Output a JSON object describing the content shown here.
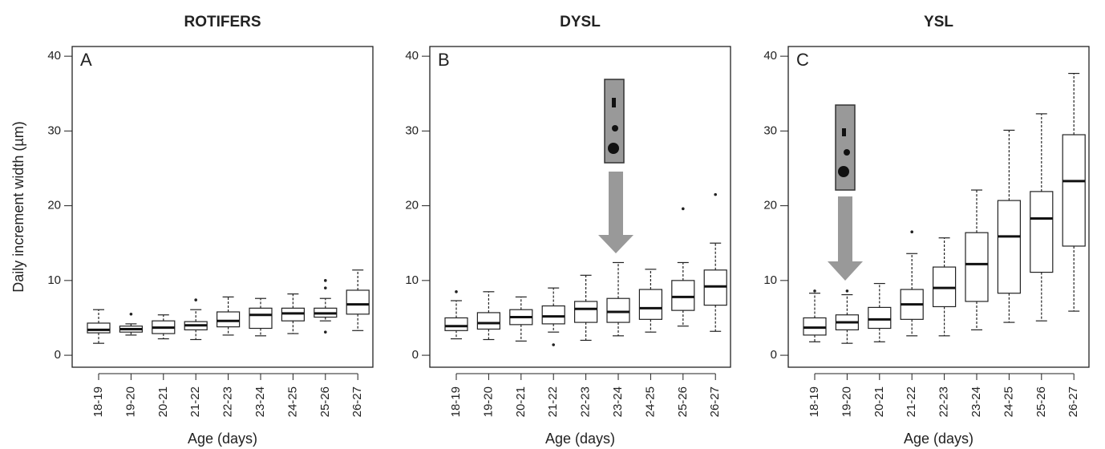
{
  "chart_data": [
    {
      "type": "box",
      "title": "ROTIFERS",
      "annotation": "A",
      "y_label": "Daily increment width (µm)",
      "x_label": "Age (days)",
      "categories": [
        "18-19",
        "19-20",
        "20-21",
        "21-22",
        "22-23",
        "23-24",
        "24-25",
        "25-26",
        "26-27"
      ],
      "boxes": [
        {
          "whisker_low": 1.6,
          "q1": 3.0,
          "median": 3.4,
          "q3": 4.3,
          "whisker_high": 6.1
        },
        {
          "whisker_low": 2.7,
          "q1": 3.1,
          "median": 3.5,
          "q3": 3.9,
          "whisker_high": 4.2,
          "outliers": [
            5.5
          ]
        },
        {
          "whisker_low": 2.2,
          "q1": 2.9,
          "median": 3.7,
          "q3": 4.6,
          "whisker_high": 5.4
        },
        {
          "whisker_low": 2.1,
          "q1": 3.4,
          "median": 4.0,
          "q3": 4.5,
          "whisker_high": 6.1,
          "outliers": [
            7.4
          ]
        },
        {
          "whisker_low": 2.7,
          "q1": 3.8,
          "median": 4.6,
          "q3": 5.8,
          "whisker_high": 7.8
        },
        {
          "whisker_low": 2.6,
          "q1": 3.6,
          "median": 5.4,
          "q3": 6.3,
          "whisker_high": 7.6
        },
        {
          "whisker_low": 2.9,
          "q1": 4.6,
          "median": 5.6,
          "q3": 6.3,
          "whisker_high": 8.2
        },
        {
          "whisker_low": 4.6,
          "q1": 5.1,
          "median": 5.6,
          "q3": 6.3,
          "whisker_high": 7.6,
          "outliers": [
            3.1,
            9.0,
            10.0
          ]
        },
        {
          "whisker_low": 3.3,
          "q1": 5.5,
          "median": 6.8,
          "q3": 8.7,
          "whisker_high": 11.4
        }
      ],
      "ylim": [
        -1.6,
        41.3
      ],
      "yticks": [
        0,
        10,
        20,
        30,
        40
      ]
    },
    {
      "type": "box",
      "title": "DYSL",
      "annotation": "B",
      "x_label": "Age (days)",
      "categories": [
        "18-19",
        "19-20",
        "20-21",
        "21-22",
        "22-23",
        "23-24",
        "24-25",
        "25-26",
        "26-27"
      ],
      "boxes": [
        {
          "whisker_low": 2.2,
          "q1": 3.3,
          "median": 3.9,
          "q3": 5.0,
          "whisker_high": 7.3,
          "outliers": [
            8.5
          ]
        },
        {
          "whisker_low": 2.1,
          "q1": 3.5,
          "median": 4.3,
          "q3": 5.7,
          "whisker_high": 8.5
        },
        {
          "whisker_low": 1.9,
          "q1": 4.1,
          "median": 5.1,
          "q3": 6.1,
          "whisker_high": 7.8
        },
        {
          "whisker_low": 3.1,
          "q1": 4.2,
          "median": 5.2,
          "q3": 6.6,
          "whisker_high": 9.0,
          "outliers": [
            1.4
          ]
        },
        {
          "whisker_low": 2.0,
          "q1": 4.4,
          "median": 6.2,
          "q3": 7.2,
          "whisker_high": 10.7
        },
        {
          "whisker_low": 2.6,
          "q1": 4.4,
          "median": 5.8,
          "q3": 7.6,
          "whisker_high": 12.4
        },
        {
          "whisker_low": 3.1,
          "q1": 4.8,
          "median": 6.3,
          "q3": 8.8,
          "whisker_high": 11.5
        },
        {
          "whisker_low": 3.9,
          "q1": 6.0,
          "median": 7.8,
          "q3": 10.0,
          "whisker_high": 12.4,
          "outliers": [
            19.6
          ]
        },
        {
          "whisker_low": 3.2,
          "q1": 6.7,
          "median": 9.2,
          "q3": 11.4,
          "whisker_high": 15.0,
          "outliers": [
            21.5
          ]
        }
      ],
      "ylim": [
        -1.6,
        41.3
      ],
      "yticks": [
        0,
        10,
        20,
        30,
        40
      ]
    },
    {
      "type": "box",
      "title": "YSL",
      "annotation": "C",
      "x_label": "Age (days)",
      "categories": [
        "18-19",
        "19-20",
        "20-21",
        "21-22",
        "22-23",
        "23-24",
        "24-25",
        "25-26",
        "26-27"
      ],
      "boxes": [
        {
          "whisker_low": 1.8,
          "q1": 2.7,
          "median": 3.7,
          "q3": 5.0,
          "whisker_high": 8.3,
          "outliers": [
            8.6
          ]
        },
        {
          "whisker_low": 1.6,
          "q1": 3.4,
          "median": 4.4,
          "q3": 5.4,
          "whisker_high": 8.1,
          "outliers": [
            8.6
          ]
        },
        {
          "whisker_low": 1.8,
          "q1": 3.6,
          "median": 4.8,
          "q3": 6.4,
          "whisker_high": 9.6
        },
        {
          "whisker_low": 2.6,
          "q1": 4.8,
          "median": 6.8,
          "q3": 8.8,
          "whisker_high": 13.6,
          "outliers": [
            16.5
          ]
        },
        {
          "whisker_low": 2.6,
          "q1": 6.5,
          "median": 9.0,
          "q3": 11.8,
          "whisker_high": 15.7
        },
        {
          "whisker_low": 3.4,
          "q1": 7.2,
          "median": 12.2,
          "q3": 16.4,
          "whisker_high": 22.1
        },
        {
          "whisker_low": 4.4,
          "q1": 8.3,
          "median": 15.9,
          "q3": 20.7,
          "whisker_high": 30.1
        },
        {
          "whisker_low": 4.6,
          "q1": 11.1,
          "median": 18.3,
          "q3": 21.9,
          "whisker_high": 32.3
        },
        {
          "whisker_low": 5.9,
          "q1": 14.6,
          "median": 23.3,
          "q3": 29.5,
          "whisker_high": 37.7
        }
      ],
      "ylim": [
        -1.6,
        41.3
      ],
      "yticks": [
        0,
        10,
        20,
        30,
        40
      ]
    }
  ]
}
